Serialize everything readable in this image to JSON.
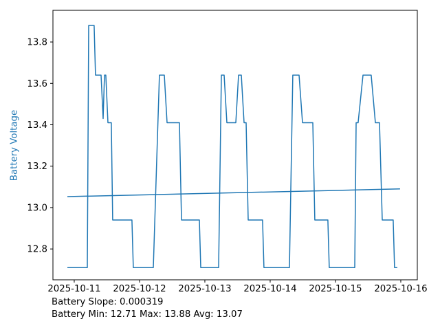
{
  "figure": {
    "ylabel": "Battery Voltage",
    "footer": {
      "slope_line": "Battery Slope: 0.000319",
      "minmax_line": "Battery Min: 12.71 Max: 13.88 Avg: 13.07"
    },
    "colors": {
      "series_line": "#1f77b4",
      "ylabel_text": "#1f77b4",
      "axis": "#000000",
      "tick_text": "#000000",
      "background": "#ffffff"
    }
  },
  "chart_data": {
    "type": "line",
    "title": "",
    "xlabel": "",
    "ylabel": "Battery Voltage",
    "grid": false,
    "legend": null,
    "stats": {
      "slope": 0.000319,
      "min": 12.71,
      "max": 13.88,
      "avg": 13.07
    },
    "xlim_days": [
      10.674,
      16.253
    ],
    "ylim": [
      12.651,
      13.953
    ],
    "x_ticks": [
      {
        "day": 11,
        "label": "2025-10-11"
      },
      {
        "day": 12,
        "label": "2025-10-12"
      },
      {
        "day": 13,
        "label": "2025-10-13"
      },
      {
        "day": 14,
        "label": "2025-10-14"
      },
      {
        "day": 15,
        "label": "2025-10-15"
      },
      {
        "day": 16,
        "label": "2025-10-16"
      }
    ],
    "y_ticks": [
      {
        "value": 12.8,
        "label": "12.8"
      },
      {
        "value": 13.0,
        "label": "13.0"
      },
      {
        "value": 13.2,
        "label": "13.2"
      },
      {
        "value": 13.4,
        "label": "13.4"
      },
      {
        "value": 13.6,
        "label": "13.6"
      },
      {
        "value": 13.8,
        "label": "13.8"
      }
    ],
    "series": [
      {
        "name": "battery-voltage",
        "color": "#1f77b4",
        "width": 1.5,
        "points": [
          [
            10.895,
            12.71
          ],
          [
            11.2,
            12.71
          ],
          [
            11.221,
            13.88
          ],
          [
            11.305,
            13.88
          ],
          [
            11.326,
            13.64
          ],
          [
            11.411,
            13.64
          ],
          [
            11.442,
            13.43
          ],
          [
            11.463,
            13.64
          ],
          [
            11.484,
            13.64
          ],
          [
            11.516,
            13.41
          ],
          [
            11.568,
            13.41
          ],
          [
            11.589,
            12.94
          ],
          [
            11.884,
            12.94
          ],
          [
            11.905,
            12.71
          ],
          [
            12.211,
            12.71
          ],
          [
            12.305,
            13.64
          ],
          [
            12.379,
            13.64
          ],
          [
            12.421,
            13.41
          ],
          [
            12.611,
            13.41
          ],
          [
            12.642,
            12.94
          ],
          [
            12.916,
            12.94
          ],
          [
            12.937,
            12.71
          ],
          [
            13.211,
            12.71
          ],
          [
            13.253,
            13.64
          ],
          [
            13.295,
            13.64
          ],
          [
            13.337,
            13.41
          ],
          [
            13.474,
            13.41
          ],
          [
            13.516,
            13.64
          ],
          [
            13.558,
            13.64
          ],
          [
            13.6,
            13.41
          ],
          [
            13.632,
            13.41
          ],
          [
            13.663,
            12.94
          ],
          [
            13.884,
            12.94
          ],
          [
            13.905,
            12.71
          ],
          [
            14.295,
            12.71
          ],
          [
            14.347,
            13.64
          ],
          [
            14.442,
            13.64
          ],
          [
            14.495,
            13.41
          ],
          [
            14.653,
            13.41
          ],
          [
            14.684,
            12.94
          ],
          [
            14.884,
            12.94
          ],
          [
            14.905,
            12.71
          ],
          [
            15.295,
            12.71
          ],
          [
            15.316,
            13.41
          ],
          [
            15.347,
            13.41
          ],
          [
            15.421,
            13.64
          ],
          [
            15.547,
            13.64
          ],
          [
            15.611,
            13.41
          ],
          [
            15.674,
            13.41
          ],
          [
            15.716,
            12.94
          ],
          [
            15.884,
            12.94
          ],
          [
            15.905,
            12.71
          ],
          [
            15.947,
            12.71
          ]
        ]
      },
      {
        "name": "trend-line",
        "color": "#1f77b4",
        "width": 1.5,
        "points": [
          [
            10.895,
            13.053
          ],
          [
            15.989,
            13.09
          ]
        ]
      }
    ]
  }
}
